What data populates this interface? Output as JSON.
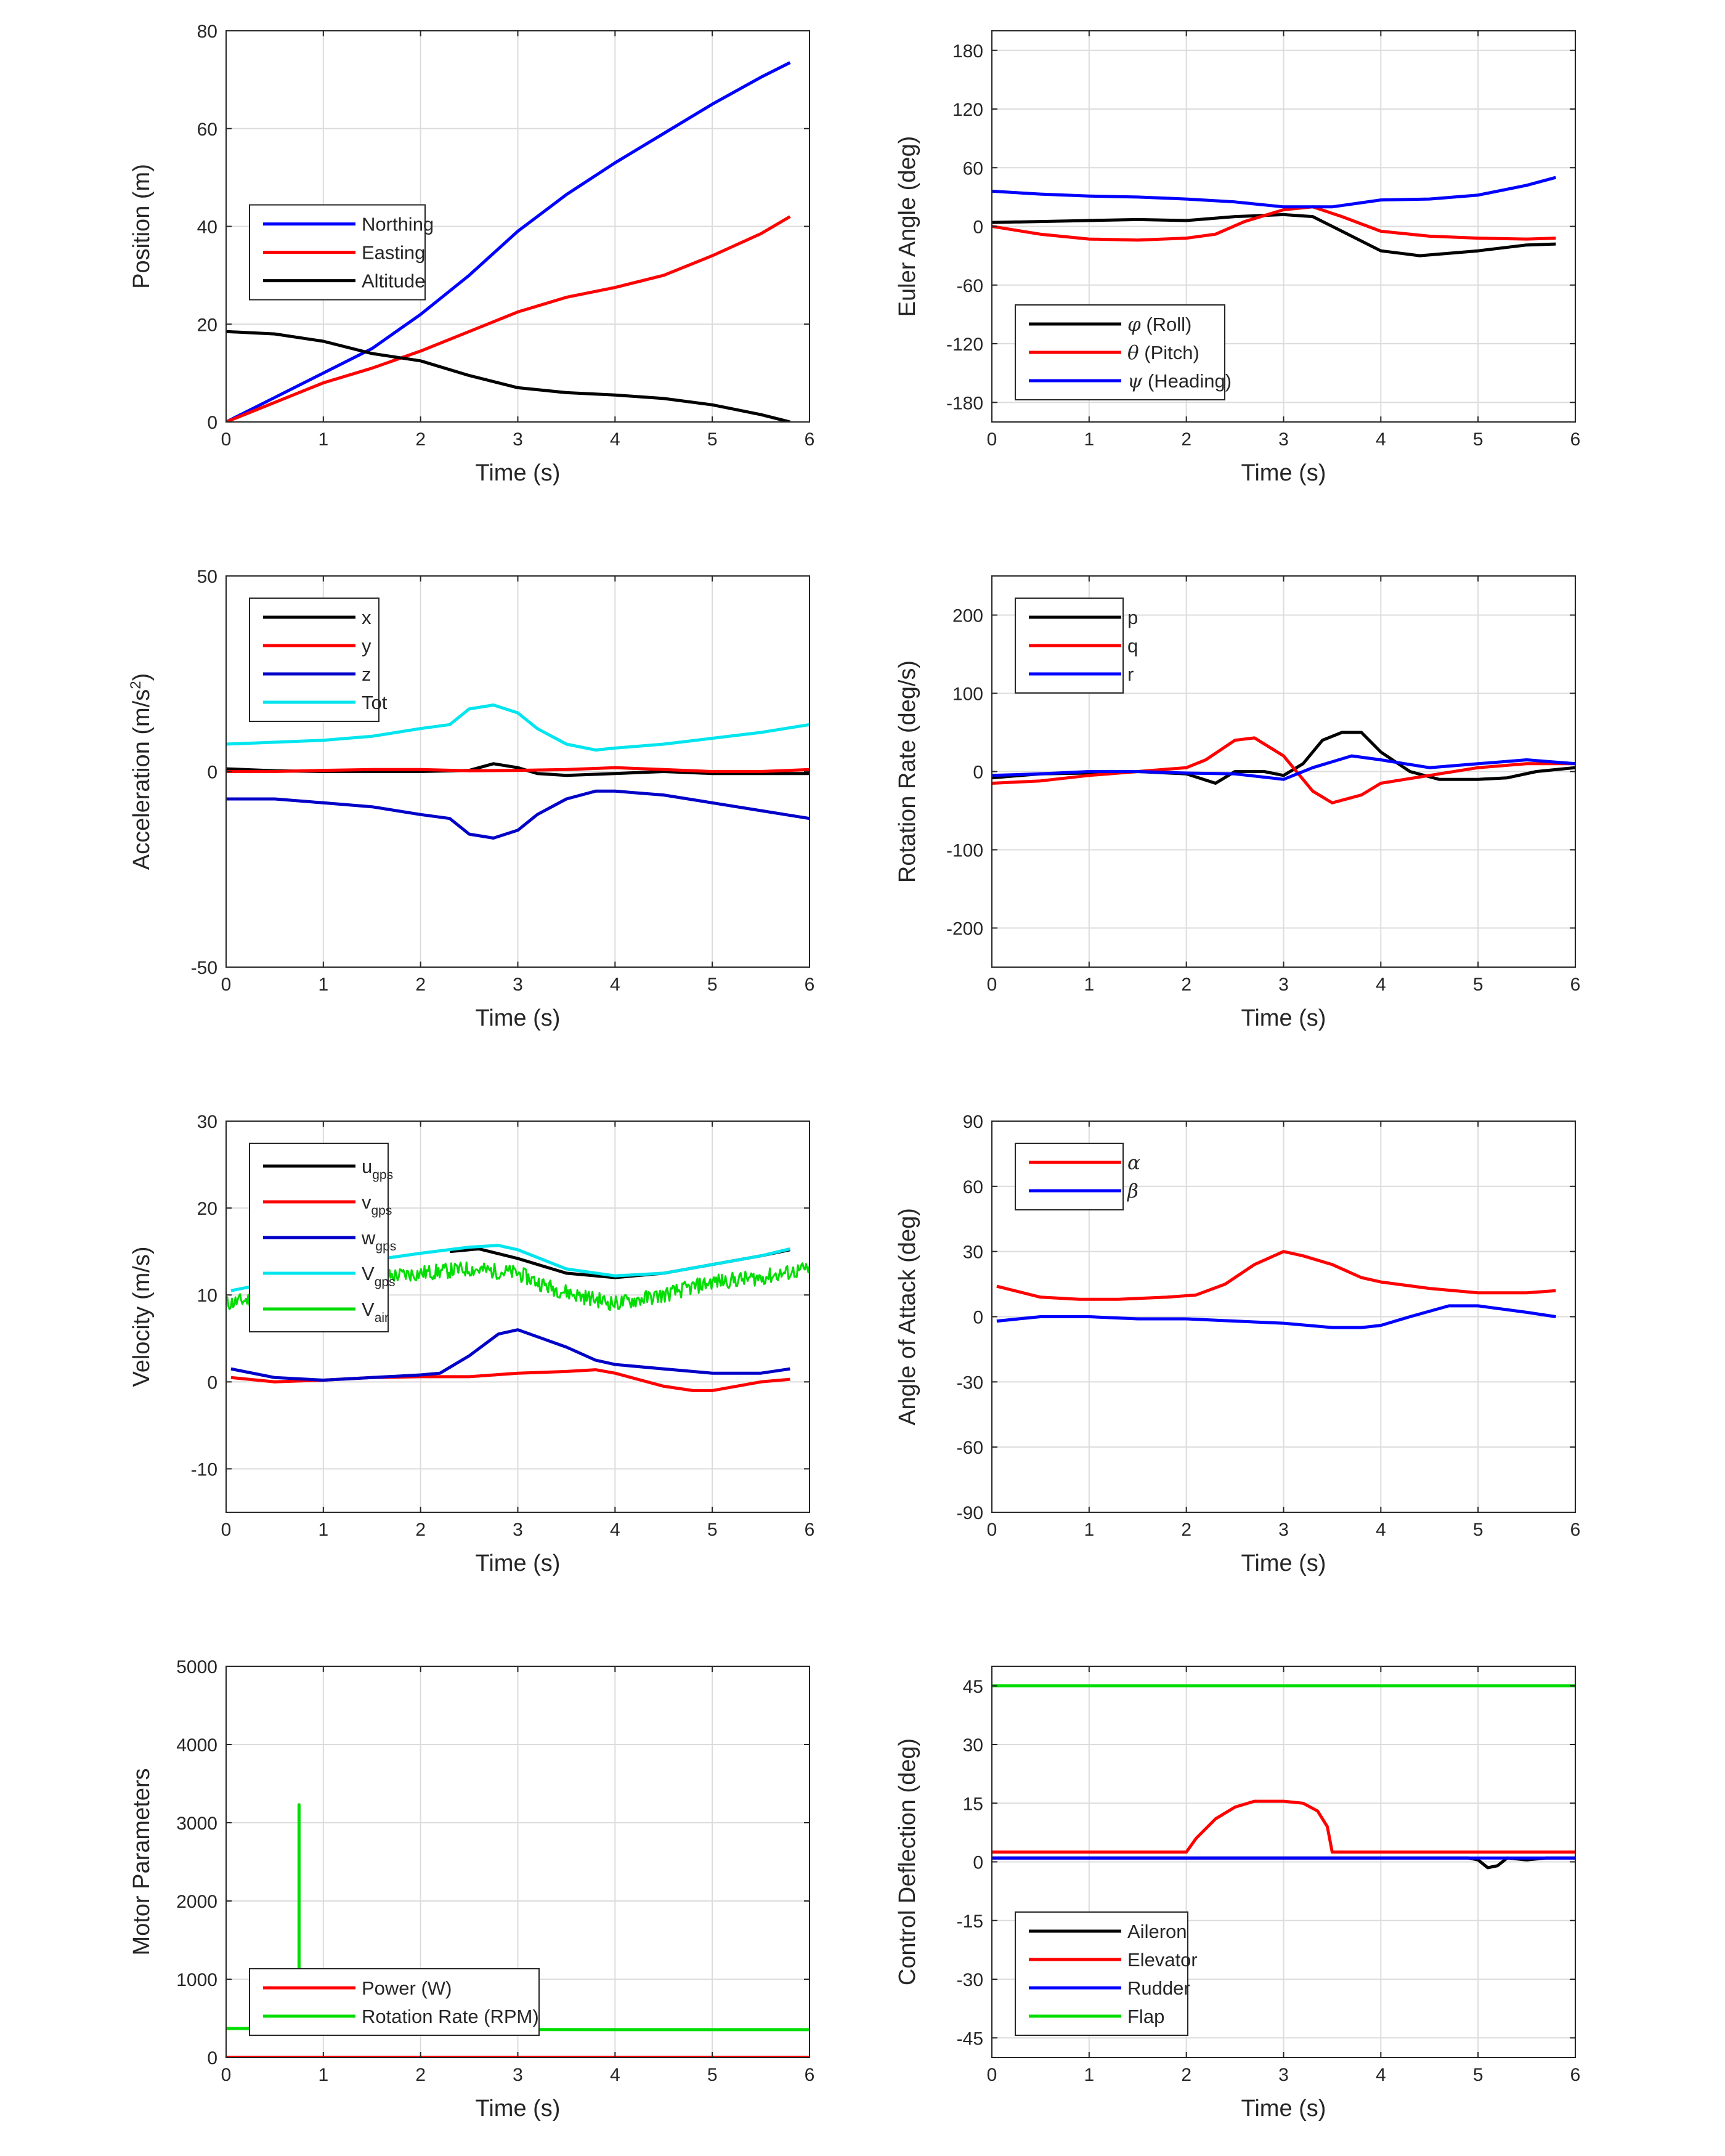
{
  "chart_data": [
    {
      "id": "position",
      "type": "line",
      "xlabel": "Time (s)",
      "ylabel": "Position (m)",
      "xlim": [
        0,
        6
      ],
      "ylim": [
        0,
        80
      ],
      "xticks": [
        0,
        1,
        2,
        3,
        4,
        5,
        6
      ],
      "yticks": [
        0,
        20,
        40,
        60,
        80
      ],
      "ytick_labels": [
        "0",
        "20",
        "40",
        "60",
        "80"
      ],
      "grid": true,
      "legend_position": "middle-left",
      "series": [
        {
          "name": "Northing",
          "color": "#0000ff",
          "x": [
            0,
            0.5,
            1,
            1.5,
            2,
            2.5,
            3,
            3.5,
            4,
            4.5,
            5,
            5.5,
            5.8
          ],
          "y": [
            0,
            5,
            10,
            15,
            22,
            30,
            39,
            46.5,
            53,
            59,
            65,
            70.5,
            73.5
          ]
        },
        {
          "name": "Easting",
          "color": "#ff0000",
          "x": [
            0,
            0.5,
            1,
            1.5,
            2,
            2.5,
            3,
            3.5,
            4,
            4.5,
            5,
            5.5,
            5.8
          ],
          "y": [
            0,
            4,
            8,
            11,
            14.5,
            18.5,
            22.5,
            25.5,
            27.5,
            30,
            34,
            38.5,
            42
          ]
        },
        {
          "name": "Altitude",
          "color": "#000000",
          "x": [
            0,
            0.5,
            1,
            1.5,
            2,
            2.5,
            3,
            3.5,
            4,
            4.5,
            5,
            5.5,
            5.8
          ],
          "y": [
            18.5,
            18,
            16.5,
            14,
            12.5,
            9.5,
            7,
            6,
            5.5,
            4.8,
            3.5,
            1.5,
            0
          ]
        }
      ]
    },
    {
      "id": "euler",
      "type": "line",
      "xlabel": "Time (s)",
      "ylabel": "Euler Angle (deg)",
      "xlim": [
        0,
        6
      ],
      "ylim": [
        -200,
        200
      ],
      "xticks": [
        0,
        1,
        2,
        3,
        4,
        5,
        6
      ],
      "yticks": [
        -180,
        -120,
        -60,
        0,
        60,
        120,
        180
      ],
      "ytick_labels": [
        "-180",
        "-120",
        "-60",
        "0",
        "60",
        "120",
        "180"
      ],
      "grid": true,
      "legend_position": "bottom-left",
      "series": [
        {
          "name": "(Roll)",
          "symbol": "φ",
          "color": "#000000",
          "x": [
            0,
            0.5,
            1,
            1.5,
            2,
            2.5,
            3,
            3.3,
            3.6,
            4,
            4.4,
            5,
            5.5,
            5.8
          ],
          "y": [
            4,
            5,
            6,
            7,
            6,
            10,
            12,
            10,
            -5,
            -25,
            -30,
            -25,
            -19,
            -18
          ]
        },
        {
          "name": "(Pitch)",
          "symbol": "θ",
          "color": "#ff0000",
          "x": [
            0,
            0.5,
            1,
            1.5,
            2,
            2.3,
            2.6,
            3,
            3.3,
            3.6,
            4,
            4.5,
            5,
            5.5,
            5.8
          ],
          "y": [
            0,
            -8,
            -13,
            -14,
            -12,
            -8,
            5,
            17,
            20,
            10,
            -5,
            -10,
            -12,
            -13,
            -12
          ]
        },
        {
          "name": "(Heading)",
          "symbol": "ψ",
          "color": "#0000ff",
          "x": [
            0,
            0.5,
            1,
            1.5,
            2,
            2.5,
            3,
            3.5,
            4,
            4.5,
            5,
            5.5,
            5.8
          ],
          "y": [
            36,
            33,
            31,
            30,
            28,
            25,
            20,
            20,
            27,
            28,
            32,
            42,
            50
          ]
        }
      ]
    },
    {
      "id": "accel",
      "type": "line",
      "xlabel": "Time (s)",
      "ylabel": "Acceleration (m/s",
      "ylabel_sup": "2",
      "ylabel_tail": ")",
      "xlim": [
        0,
        6
      ],
      "ylim": [
        -50,
        50
      ],
      "xticks": [
        0,
        1,
        2,
        3,
        4,
        5,
        6
      ],
      "yticks": [
        -50,
        0,
        50
      ],
      "ytick_labels": [
        "-50",
        "0",
        "50"
      ],
      "grid": true,
      "legend_position": "top-left",
      "series": [
        {
          "name": "x",
          "color": "#000000",
          "x": [
            0,
            0.5,
            1,
            1.5,
            2,
            2.5,
            2.75,
            3,
            3.2,
            3.5,
            4,
            4.5,
            5,
            5.5,
            6
          ],
          "y": [
            0.7,
            0.2,
            0,
            0,
            0,
            0.3,
            2,
            1,
            -0.5,
            -1,
            -0.5,
            0,
            -0.5,
            -0.5,
            -0.5
          ]
        },
        {
          "name": "y",
          "color": "#ff0000",
          "x": [
            0,
            0.5,
            1,
            1.5,
            2,
            2.5,
            3,
            3.5,
            4,
            4.5,
            5,
            5.5,
            6
          ],
          "y": [
            0,
            0,
            0.3,
            0.5,
            0.5,
            0.2,
            0.3,
            0.5,
            1,
            0.5,
            0,
            0,
            0.5
          ]
        },
        {
          "name": "z",
          "color": "#0000c8",
          "x": [
            0,
            0.5,
            1,
            1.5,
            2,
            2.3,
            2.5,
            2.75,
            3,
            3.2,
            3.5,
            3.8,
            4,
            4.5,
            5,
            5.5,
            6
          ],
          "y": [
            -7,
            -7,
            -8,
            -9,
            -11,
            -12,
            -16,
            -17,
            -15,
            -11,
            -7,
            -5,
            -5,
            -6,
            -8,
            -10,
            -12
          ]
        },
        {
          "name": "Tot",
          "color": "#00e5ee",
          "x": [
            0,
            0.5,
            1,
            1.5,
            2,
            2.3,
            2.5,
            2.75,
            3,
            3.2,
            3.5,
            3.8,
            4,
            4.5,
            5,
            5.5,
            6
          ],
          "y": [
            7,
            7.5,
            8,
            9,
            11,
            12,
            16,
            17,
            15,
            11,
            7,
            5.5,
            6,
            7,
            8.5,
            10,
            12
          ]
        }
      ]
    },
    {
      "id": "rate",
      "type": "line",
      "xlabel": "Time (s)",
      "ylabel": "Rotation Rate (deg/s)",
      "xlim": [
        0,
        6
      ],
      "ylim": [
        -250,
        250
      ],
      "xticks": [
        0,
        1,
        2,
        3,
        4,
        5,
        6
      ],
      "yticks": [
        -200,
        -100,
        0,
        100,
        200
      ],
      "ytick_labels": [
        "-200",
        "-100",
        "0",
        "100",
        "200"
      ],
      "grid": true,
      "legend_position": "top-left",
      "series": [
        {
          "name": "p",
          "color": "#000000",
          "x": [
            0,
            0.5,
            1,
            1.5,
            2,
            2.3,
            2.5,
            2.8,
            3,
            3.2,
            3.4,
            3.6,
            3.8,
            4,
            4.3,
            4.6,
            5,
            5.3,
            5.6,
            6
          ],
          "y": [
            -8,
            -3,
            -2,
            0,
            -3,
            -15,
            0,
            0,
            -5,
            10,
            40,
            50,
            50,
            25,
            0,
            -10,
            -10,
            -8,
            0,
            5
          ]
        },
        {
          "name": "q",
          "color": "#ff0000",
          "x": [
            0,
            0.5,
            1,
            1.5,
            2,
            2.2,
            2.5,
            2.7,
            3,
            3.3,
            3.5,
            3.8,
            4,
            4.5,
            5,
            5.5,
            6
          ],
          "y": [
            -15,
            -12,
            -5,
            0,
            5,
            15,
            40,
            43,
            20,
            -25,
            -40,
            -30,
            -15,
            -5,
            5,
            10,
            10
          ]
        },
        {
          "name": "r",
          "color": "#0000ff",
          "x": [
            0,
            0.5,
            1,
            1.5,
            2,
            2.5,
            3,
            3.3,
            3.7,
            4,
            4.5,
            5,
            5.5,
            6
          ],
          "y": [
            -5,
            -3,
            0,
            0,
            -2,
            -3,
            -10,
            5,
            20,
            15,
            5,
            10,
            15,
            10
          ]
        }
      ]
    },
    {
      "id": "velocity",
      "type": "line",
      "xlabel": "Time (s)",
      "ylabel": "Velocity (m/s)",
      "xlim": [
        0,
        6
      ],
      "ylim": [
        -15,
        30
      ],
      "xticks": [
        0,
        1,
        2,
        3,
        4,
        5,
        6
      ],
      "yticks": [
        -10,
        0,
        10,
        20,
        30
      ],
      "ytick_labels": [
        "-10",
        "0",
        "10",
        "20",
        "30"
      ],
      "grid": true,
      "legend_position": "top-left",
      "series": [
        {
          "name": "u",
          "sub": "gps",
          "color": "#000000",
          "x": [
            2.3,
            2.6,
            3,
            3.5,
            4,
            4.5,
            5,
            5.5,
            5.8
          ],
          "y": [
            15,
            15.3,
            14.2,
            12.5,
            12,
            12.5,
            13.5,
            14.5,
            15.2
          ]
        },
        {
          "name": "v",
          "sub": "gps",
          "color": "#ff0000",
          "x": [
            0.05,
            0.5,
            1,
            1.5,
            2,
            2.5,
            3,
            3.5,
            3.8,
            4,
            4.5,
            4.8,
            5,
            5.5,
            5.8
          ],
          "y": [
            0.5,
            0,
            0.2,
            0.5,
            0.6,
            0.6,
            1,
            1.2,
            1.4,
            1,
            -0.5,
            -1,
            -1,
            0,
            0.3
          ]
        },
        {
          "name": "w",
          "sub": "gps",
          "color": "#0000c8",
          "x": [
            0.05,
            0.5,
            1,
            1.5,
            2,
            2.2,
            2.5,
            2.8,
            3,
            3.5,
            3.8,
            4,
            4.5,
            5,
            5.5,
            5.8
          ],
          "y": [
            1.5,
            0.5,
            0.2,
            0.5,
            0.8,
            1,
            3,
            5.5,
            6,
            4,
            2.5,
            2,
            1.5,
            1,
            1,
            1.5
          ]
        },
        {
          "name": "V",
          "sub": "gps",
          "color": "#00e5ee",
          "x": [
            0.05,
            0.5,
            1,
            1.5,
            2,
            2.5,
            2.8,
            3,
            3.5,
            4,
            4.5,
            5,
            5.5,
            5.8
          ],
          "y": [
            10.5,
            11.5,
            12.5,
            14,
            14.8,
            15.5,
            15.7,
            15.2,
            13,
            12.2,
            12.5,
            13.5,
            14.5,
            15.3
          ]
        },
        {
          "name": "V",
          "sub": "air",
          "color": "#00dd00",
          "noise": 0.9,
          "x": [
            0,
            0.5,
            1,
            1.5,
            2,
            2.5,
            3,
            3.3,
            3.6,
            4,
            4.5,
            5,
            5.5,
            6
          ],
          "y": [
            9,
            10,
            11,
            12,
            12.5,
            13,
            12.5,
            11,
            10,
            9,
            10,
            11.5,
            12,
            13
          ]
        }
      ]
    },
    {
      "id": "aoa",
      "type": "line",
      "xlabel": "Time (s)",
      "ylabel": "Angle of Attack (deg)",
      "xlim": [
        0,
        6
      ],
      "ylim": [
        -90,
        90
      ],
      "xticks": [
        0,
        1,
        2,
        3,
        4,
        5,
        6
      ],
      "yticks": [
        -90,
        -60,
        -30,
        0,
        30,
        60,
        90
      ],
      "ytick_labels": [
        "-90",
        "-60",
        "-30",
        "0",
        "30",
        "60",
        "90"
      ],
      "grid": true,
      "legend_position": "top-left",
      "series": [
        {
          "name": "α",
          "color": "#ff0000",
          "x": [
            0.05,
            0.5,
            0.9,
            1.3,
            1.8,
            2.1,
            2.4,
            2.7,
            3,
            3.2,
            3.5,
            3.8,
            4.0,
            4.5,
            5,
            5.5,
            5.8
          ],
          "y": [
            14,
            9,
            8,
            8,
            9,
            10,
            15,
            24,
            30,
            28,
            24,
            18,
            16,
            13,
            11,
            11,
            12
          ]
        },
        {
          "name": "β",
          "color": "#0000ff",
          "x": [
            0.05,
            0.5,
            1,
            1.5,
            2,
            2.5,
            3,
            3.5,
            3.8,
            4,
            4.3,
            4.7,
            5,
            5.5,
            5.8
          ],
          "y": [
            -2,
            0,
            0,
            -1,
            -1,
            -2,
            -3,
            -5,
            -5,
            -4,
            0,
            5,
            5,
            2,
            0
          ]
        }
      ]
    },
    {
      "id": "motor",
      "type": "line",
      "xlabel": "Time (s)",
      "ylabel": "Motor Parameters",
      "xlim": [
        0,
        6
      ],
      "ylim": [
        0,
        5000
      ],
      "xticks": [
        0,
        1,
        2,
        3,
        4,
        5,
        6
      ],
      "yticks": [
        0,
        1000,
        2000,
        3000,
        4000,
        5000
      ],
      "ytick_labels": [
        "0",
        "1000",
        "2000",
        "3000",
        "4000",
        "5000"
      ],
      "grid": true,
      "legend_position": "bottom-left",
      "series": [
        {
          "name": "Power (W)",
          "color": "#ff0000",
          "x": [
            0,
            6
          ],
          "y": [
            0,
            0
          ]
        },
        {
          "name": "Rotation Rate (RPM)",
          "color": "#00dd00",
          "x": [
            0,
            0.75,
            0.75,
            0.75,
            0.76,
            2,
            4,
            6
          ],
          "y": [
            370,
            370,
            3230,
            370,
            370,
            360,
            355,
            355
          ]
        }
      ]
    },
    {
      "id": "control",
      "type": "line",
      "xlabel": "Time (s)",
      "ylabel": "Control Deflection (deg)",
      "xlim": [
        0,
        6
      ],
      "ylim": [
        -50,
        50
      ],
      "xticks": [
        0,
        1,
        2,
        3,
        4,
        5,
        6
      ],
      "yticks": [
        -45,
        -30,
        -15,
        0,
        15,
        30,
        45
      ],
      "ytick_labels": [
        "-45",
        "-30",
        "-15",
        "0",
        "15",
        "30",
        "45"
      ],
      "grid": true,
      "legend_position": "bottom-left",
      "series": [
        {
          "name": "Aileron",
          "color": "#000000",
          "x": [
            0,
            4.9,
            5.0,
            5.1,
            5.2,
            5.3,
            5.5,
            5.7,
            6
          ],
          "y": [
            1,
            1,
            0.5,
            -1.5,
            -1,
            1,
            0.5,
            1,
            1
          ]
        },
        {
          "name": "Elevator",
          "color": "#ff0000",
          "x": [
            0,
            2.0,
            2.1,
            2.3,
            2.5,
            2.7,
            3.0,
            3.2,
            3.35,
            3.45,
            3.5,
            6
          ],
          "y": [
            2.5,
            2.5,
            6,
            11,
            14,
            15.5,
            15.5,
            15,
            13,
            9,
            2.5,
            2.5
          ]
        },
        {
          "name": "Rudder",
          "color": "#0000ff",
          "x": [
            0,
            6
          ],
          "y": [
            1,
            1
          ]
        },
        {
          "name": "Flap",
          "color": "#00dd00",
          "x": [
            0,
            6
          ],
          "y": [
            45,
            45
          ]
        }
      ]
    }
  ]
}
